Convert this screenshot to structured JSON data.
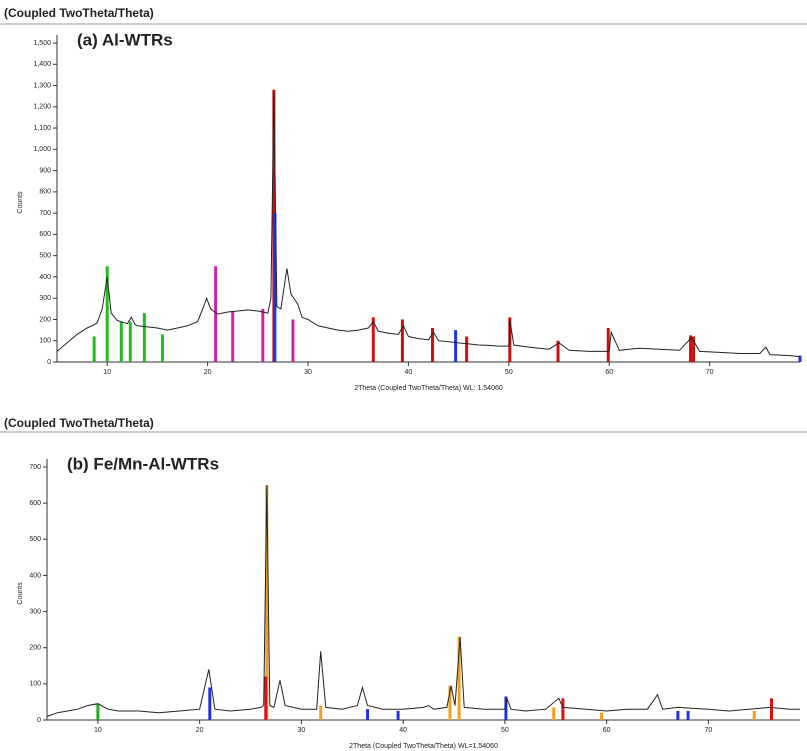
{
  "chart_data": [
    {
      "type": "line",
      "header": "(Coupled TwoTheta/Theta)",
      "title": "(a) Al-WTRs",
      "ylabel": "Counts",
      "xlabel": "2Theta (Coupled TwoTheta/Theta) WL: 1.54060",
      "color": "#222222",
      "xlim": [
        5,
        79
      ],
      "xticks": [
        10,
        20,
        30,
        40,
        50,
        60,
        70
      ],
      "ylim": [
        0,
        1500
      ],
      "yticks": [
        0,
        100,
        200,
        300,
        400,
        500,
        600,
        700,
        800,
        900,
        {
          "value": 1000,
          "label": "1,000"
        },
        {
          "value": 1100,
          "label": "1,100"
        },
        {
          "value": 1200,
          "label": "1,200"
        },
        {
          "value": 1300,
          "label": "1,300"
        },
        {
          "value": 1400,
          "label": "1,400"
        },
        {
          "value": 1500,
          "label": "1,500"
        }
      ],
      "x": [
        5,
        6,
        7,
        8,
        8.7,
        9,
        9.5,
        10,
        10.4,
        11,
        12,
        12.4,
        12.8,
        13,
        14,
        15,
        16,
        17,
        18,
        19,
        19.6,
        19.9,
        20.3,
        21,
        22,
        23,
        24,
        25,
        26,
        26.3,
        26.6,
        26.9,
        27.3,
        27.9,
        28.3,
        29,
        29.4,
        30,
        31,
        32,
        33,
        34,
        35,
        36,
        36.5,
        37,
        38,
        39,
        39.5,
        40,
        41,
        42,
        42.5,
        43,
        44,
        45,
        46,
        47,
        48,
        49,
        50,
        50.1,
        50.5,
        52,
        54,
        55,
        56,
        58,
        60,
        60.2,
        61,
        63,
        65,
        67,
        68.2,
        69,
        71,
        73,
        75,
        75.6,
        76,
        78,
        79
      ],
      "values": [
        50,
        90,
        130,
        160,
        175,
        185,
        250,
        400,
        230,
        195,
        180,
        210,
        175,
        170,
        165,
        160,
        150,
        160,
        170,
        190,
        260,
        300,
        250,
        225,
        235,
        240,
        245,
        240,
        230,
        300,
        1270,
        260,
        250,
        440,
        320,
        270,
        210,
        200,
        170,
        160,
        150,
        145,
        150,
        160,
        190,
        145,
        135,
        130,
        170,
        120,
        110,
        105,
        140,
        100,
        95,
        90,
        85,
        80,
        78,
        75,
        75,
        200,
        80,
        70,
        60,
        90,
        55,
        50,
        50,
        140,
        55,
        65,
        60,
        55,
        115,
        50,
        45,
        40,
        40,
        70,
        35,
        30,
        25
      ],
      "sticks": [
        {
          "color": "#22bb22",
          "x": [
            8.7,
            10,
            11.4,
            12.3,
            13.7,
            15.5
          ],
          "values": [
            120,
            450,
            190,
            190,
            230,
            130
          ]
        },
        {
          "color": "#cc22aa",
          "x": [
            20.8,
            22.5,
            25.5,
            28.5
          ],
          "values": [
            450,
            240,
            250,
            200
          ]
        },
        {
          "color": "#cc1111",
          "x": [
            26.6,
            36.5,
            39.4,
            42.4,
            45.8,
            50.1,
            54.9,
            59.9,
            68.1,
            68.4
          ],
          "values": [
            1280,
            210,
            200,
            160,
            120,
            210,
            100,
            160,
            125,
            120
          ]
        },
        {
          "color": "#2233dd",
          "x": [
            26.7,
            44.7,
            79
          ],
          "values": [
            700,
            150,
            30
          ]
        }
      ]
    },
    {
      "type": "line",
      "header": "(Coupled TwoTheta/Theta)",
      "title": "(b) Fe/Mn-Al-WTRs",
      "ylabel": "Counts",
      "xlabel": "2Theta (Coupled TwoTheta/Theta) WL=1.54060",
      "color": "#222222",
      "xlim": [
        5,
        79
      ],
      "xticks": [
        10,
        20,
        30,
        40,
        50,
        60,
        70
      ],
      "ylim": [
        0,
        700
      ],
      "yticks": [
        0,
        100,
        200,
        300,
        400,
        500,
        600,
        700
      ],
      "x": [
        5,
        6,
        7,
        8,
        9,
        10,
        11,
        12,
        14,
        16,
        18,
        20,
        20.9,
        21.5,
        23,
        25,
        26,
        26.3,
        26.6,
        26.9,
        27.3,
        27.9,
        28.4,
        30,
        31.5,
        31.9,
        32.4,
        34,
        35.5,
        36,
        36.5,
        38,
        40,
        42,
        42.5,
        43,
        44.3,
        44.7,
        45.1,
        45.6,
        46,
        48,
        50,
        50.2,
        50.6,
        52,
        54,
        55.3,
        55.7,
        58,
        60,
        62,
        64,
        65,
        65.5,
        67,
        70,
        72,
        74,
        76,
        78,
        79
      ],
      "values": [
        10,
        20,
        25,
        30,
        40,
        45,
        30,
        25,
        25,
        20,
        25,
        30,
        140,
        30,
        25,
        30,
        35,
        40,
        650,
        40,
        35,
        110,
        40,
        30,
        30,
        190,
        35,
        30,
        40,
        90,
        40,
        30,
        30,
        35,
        40,
        30,
        35,
        95,
        40,
        230,
        35,
        30,
        30,
        60,
        30,
        25,
        30,
        60,
        35,
        30,
        25,
        30,
        30,
        70,
        30,
        35,
        30,
        25,
        30,
        35,
        30,
        30
      ],
      "sticks": [
        {
          "color": "#22aa22",
          "x": [
            10
          ],
          "values": [
            45
          ]
        },
        {
          "color": "#2233dd",
          "x": [
            21,
            36.5,
            39.5,
            50.1,
            67,
            68
          ],
          "values": [
            90,
            30,
            25,
            65,
            25,
            25
          ]
        },
        {
          "color": "#f0a020",
          "x": [
            26.6,
            31.9,
            44.6,
            45.5,
            54.8,
            59.5,
            74.5
          ],
          "values": [
            650,
            40,
            95,
            230,
            35,
            20,
            25
          ]
        },
        {
          "color": "#dd1111",
          "x": [
            26.5,
            55.7,
            76.2
          ],
          "values": [
            120,
            60,
            60
          ]
        }
      ]
    }
  ]
}
